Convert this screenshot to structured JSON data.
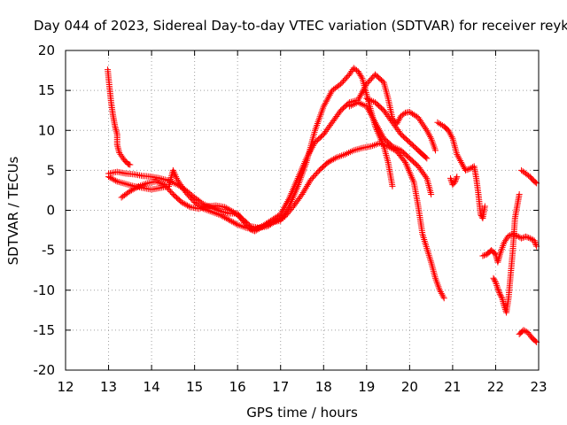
{
  "chart_data": {
    "type": "scatter",
    "title": "Day 044 of 2023, Sidereal Day-to-day VTEC variation (SDTVAR) for receiver reyk",
    "xlabel": "GPS time / hours",
    "ylabel": "SDTVAR / TECUs",
    "xlim": [
      12,
      23
    ],
    "ylim": [
      -20,
      20
    ],
    "xticks": [
      "12",
      "13",
      "14",
      "15",
      "16",
      "17",
      "18",
      "19",
      "20",
      "21",
      "22",
      "23"
    ],
    "yticks": [
      "-20",
      "-15",
      "-10",
      "-5",
      "0",
      "5",
      "10",
      "15",
      "20"
    ],
    "grid": true,
    "marker": "+",
    "color": "#ff0000",
    "series": [
      {
        "name": "trace-a",
        "points": [
          [
            12.98,
            17.6
          ],
          [
            13.02,
            15.5
          ],
          [
            13.06,
            13.5
          ],
          [
            13.1,
            12.0
          ],
          [
            13.15,
            10.5
          ],
          [
            13.2,
            9.5
          ],
          [
            13.2,
            8.2
          ],
          [
            13.25,
            7.2
          ],
          [
            13.35,
            6.4
          ],
          [
            13.45,
            5.8
          ],
          [
            13.5,
            5.7
          ]
        ]
      },
      {
        "name": "trace-b",
        "points": [
          [
            13.0,
            4.6
          ],
          [
            13.2,
            4.8
          ],
          [
            13.4,
            4.6
          ],
          [
            13.6,
            4.5
          ],
          [
            13.8,
            4.3
          ],
          [
            14.0,
            4.2
          ],
          [
            14.2,
            4.0
          ],
          [
            14.4,
            3.7
          ],
          [
            14.6,
            3.2
          ],
          [
            14.8,
            2.5
          ],
          [
            15.0,
            1.6
          ],
          [
            15.2,
            0.8
          ],
          [
            15.4,
            0.3
          ],
          [
            15.6,
            -0.1
          ],
          [
            15.8,
            -0.4
          ],
          [
            16.0,
            -0.4
          ],
          [
            16.1,
            -1.2
          ],
          [
            16.3,
            -2.4
          ],
          [
            16.4,
            -2.6
          ],
          [
            16.6,
            -2.0
          ],
          [
            16.8,
            -1.5
          ],
          [
            17.0,
            -1.3
          ],
          [
            17.2,
            0.5
          ],
          [
            17.4,
            3.0
          ],
          [
            17.6,
            6.0
          ],
          [
            17.8,
            10.0
          ],
          [
            18.0,
            13.0
          ],
          [
            18.2,
            15.0
          ],
          [
            18.4,
            15.8
          ],
          [
            18.6,
            17.0
          ],
          [
            18.7,
            17.8
          ],
          [
            18.8,
            17.4
          ],
          [
            18.9,
            16.5
          ],
          [
            19.0,
            14.5
          ],
          [
            19.1,
            12.5
          ],
          [
            19.2,
            10.5
          ],
          [
            19.4,
            8.0
          ],
          [
            19.5,
            6.0
          ],
          [
            19.6,
            3.0
          ]
        ]
      },
      {
        "name": "trace-c",
        "points": [
          [
            13.0,
            4.2
          ],
          [
            13.2,
            3.6
          ],
          [
            13.4,
            3.3
          ],
          [
            13.6,
            3.0
          ],
          [
            13.8,
            2.8
          ],
          [
            14.0,
            2.6
          ],
          [
            14.2,
            2.8
          ],
          [
            14.4,
            3.0
          ],
          [
            14.5,
            5.0
          ],
          [
            14.6,
            3.8
          ],
          [
            14.8,
            2.2
          ],
          [
            15.0,
            1.0
          ],
          [
            15.2,
            0.2
          ],
          [
            15.4,
            -0.2
          ],
          [
            15.6,
            -0.6
          ],
          [
            15.8,
            -1.2
          ],
          [
            16.0,
            -1.8
          ],
          [
            16.2,
            -2.2
          ],
          [
            16.4,
            -2.4
          ],
          [
            16.6,
            -1.9
          ],
          [
            16.8,
            -1.2
          ],
          [
            17.0,
            -0.5
          ],
          [
            17.2,
            1.5
          ],
          [
            17.4,
            4.0
          ],
          [
            17.6,
            6.5
          ],
          [
            17.8,
            8.5
          ],
          [
            18.0,
            9.5
          ],
          [
            18.2,
            11.0
          ],
          [
            18.4,
            12.5
          ],
          [
            18.6,
            13.5
          ],
          [
            18.8,
            13.8
          ],
          [
            19.0,
            15.8
          ],
          [
            19.2,
            17.0
          ],
          [
            19.4,
            16.0
          ],
          [
            19.5,
            14.0
          ],
          [
            19.6,
            11.5
          ],
          [
            19.7,
            10.8
          ],
          [
            19.8,
            11.8
          ],
          [
            19.9,
            12.2
          ],
          [
            20.0,
            12.3
          ],
          [
            20.2,
            11.6
          ],
          [
            20.4,
            10.0
          ],
          [
            20.5,
            9.0
          ],
          [
            20.6,
            7.5
          ]
        ]
      },
      {
        "name": "trace-d",
        "points": [
          [
            13.3,
            1.6
          ],
          [
            13.5,
            2.4
          ],
          [
            13.7,
            3.0
          ],
          [
            13.9,
            3.4
          ],
          [
            14.1,
            3.6
          ],
          [
            14.3,
            3.2
          ],
          [
            14.5,
            2.0
          ],
          [
            14.7,
            1.0
          ],
          [
            14.9,
            0.4
          ],
          [
            15.1,
            0.2
          ],
          [
            15.3,
            0.5
          ],
          [
            15.5,
            0.6
          ],
          [
            15.7,
            0.4
          ],
          [
            15.9,
            -0.2
          ],
          [
            16.1,
            -1.0
          ],
          [
            16.3,
            -2.0
          ],
          [
            16.5,
            -2.2
          ],
          [
            16.7,
            -2.0
          ],
          [
            16.9,
            -1.3
          ],
          [
            17.1,
            -0.8
          ],
          [
            17.3,
            0.5
          ],
          [
            17.5,
            2.0
          ],
          [
            17.7,
            3.8
          ],
          [
            17.9,
            5.0
          ],
          [
            18.1,
            6.0
          ],
          [
            18.3,
            6.6
          ],
          [
            18.5,
            7.0
          ],
          [
            18.7,
            7.5
          ],
          [
            18.9,
            7.8
          ],
          [
            19.1,
            8.0
          ],
          [
            19.3,
            8.4
          ],
          [
            19.5,
            8.0
          ],
          [
            19.7,
            7.4
          ],
          [
            19.9,
            6.0
          ],
          [
            20.1,
            3.5
          ],
          [
            20.2,
            0.5
          ],
          [
            20.3,
            -3.0
          ],
          [
            20.5,
            -6.5
          ],
          [
            20.6,
            -8.5
          ],
          [
            20.7,
            -10.0
          ],
          [
            20.8,
            -11.0
          ]
        ]
      },
      {
        "name": "trace-e",
        "points": [
          [
            18.6,
            13.0
          ],
          [
            18.8,
            13.5
          ],
          [
            19.0,
            13.0
          ],
          [
            19.2,
            11.0
          ],
          [
            19.4,
            9.0
          ],
          [
            19.6,
            8.0
          ],
          [
            19.8,
            7.5
          ],
          [
            20.0,
            6.5
          ],
          [
            20.2,
            5.5
          ],
          [
            20.4,
            4.0
          ],
          [
            20.5,
            2.0
          ]
        ]
      },
      {
        "name": "trace-f",
        "points": [
          [
            19.0,
            14.0
          ],
          [
            19.2,
            13.5
          ],
          [
            19.4,
            12.5
          ],
          [
            19.6,
            11.0
          ],
          [
            19.8,
            9.5
          ],
          [
            20.0,
            8.5
          ],
          [
            20.2,
            7.5
          ],
          [
            20.3,
            7.0
          ],
          [
            20.4,
            6.5
          ]
        ]
      },
      {
        "name": "trace-g",
        "points": [
          [
            20.65,
            11.0
          ],
          [
            20.8,
            10.5
          ],
          [
            20.9,
            10.0
          ],
          [
            21.0,
            9.0
          ],
          [
            21.1,
            7.0
          ],
          [
            21.2,
            6.0
          ],
          [
            21.3,
            5.0
          ],
          [
            21.4,
            5.2
          ],
          [
            21.5,
            5.5
          ],
          [
            21.55,
            4.0
          ],
          [
            21.6,
            2.0
          ],
          [
            21.65,
            -0.5
          ],
          [
            21.7,
            -1.0
          ],
          [
            21.75,
            0.5
          ]
        ]
      },
      {
        "name": "trace-h",
        "points": [
          [
            20.95,
            4.0
          ],
          [
            21.0,
            3.2
          ],
          [
            21.05,
            3.5
          ],
          [
            21.1,
            4.2
          ]
        ]
      },
      {
        "name": "trace-i",
        "points": [
          [
            21.7,
            -5.7
          ],
          [
            21.8,
            -5.5
          ],
          [
            21.9,
            -5.0
          ],
          [
            22.0,
            -5.5
          ],
          [
            22.05,
            -6.5
          ],
          [
            22.1,
            -5.5
          ],
          [
            22.2,
            -4.0
          ],
          [
            22.3,
            -3.2
          ],
          [
            22.4,
            -3.0
          ],
          [
            22.5,
            -3.2
          ],
          [
            22.6,
            -3.5
          ],
          [
            22.7,
            -3.3
          ],
          [
            22.8,
            -3.5
          ],
          [
            22.9,
            -3.8
          ],
          [
            22.95,
            -4.5
          ]
        ]
      },
      {
        "name": "trace-j",
        "points": [
          [
            21.95,
            -8.5
          ],
          [
            22.0,
            -9.0
          ],
          [
            22.05,
            -9.8
          ],
          [
            22.1,
            -10.5
          ],
          [
            22.15,
            -11.0
          ],
          [
            22.2,
            -12.0
          ],
          [
            22.25,
            -12.8
          ],
          [
            22.3,
            -11.0
          ],
          [
            22.35,
            -8.0
          ],
          [
            22.4,
            -5.0
          ],
          [
            22.45,
            -1.0
          ],
          [
            22.5,
            0.5
          ],
          [
            22.55,
            2.0
          ]
        ]
      },
      {
        "name": "trace-k",
        "points": [
          [
            22.6,
            5.0
          ],
          [
            22.7,
            4.6
          ],
          [
            22.8,
            4.2
          ],
          [
            22.9,
            3.6
          ],
          [
            22.95,
            3.4
          ]
        ]
      },
      {
        "name": "trace-l",
        "points": [
          [
            22.55,
            -15.5
          ],
          [
            22.65,
            -15.0
          ],
          [
            22.75,
            -15.3
          ],
          [
            22.85,
            -16.0
          ],
          [
            22.95,
            -16.5
          ]
        ]
      }
    ]
  }
}
